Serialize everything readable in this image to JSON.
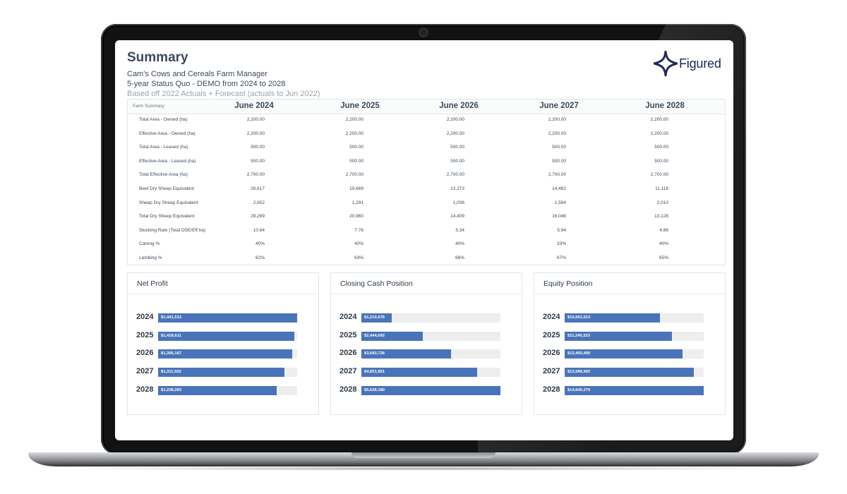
{
  "header": {
    "title": "Summary",
    "farm_manager": "Cam's Cows and Cereals Farm Manager",
    "scenario": "5-year Status Quo - DEMO from 2024 to 2028",
    "basis": "Based off 2022 Actuals + Forecast (actuals to Jun 2022)"
  },
  "logo": {
    "text": "Figured",
    "icon": "figured-star-logo",
    "color": "#1c2a56"
  },
  "table": {
    "corner_label": "Farm Summary",
    "columns": [
      "June 2024",
      "June 2025",
      "June 2026",
      "June 2027",
      "June 2028"
    ],
    "rows": [
      {
        "label": "Total Area - Owned (ha)",
        "values": [
          "2,200.00",
          "2,200.00",
          "2,200.00",
          "2,200.00",
          "2,200.00"
        ]
      },
      {
        "label": "Effective Area - Owned (ha)",
        "values": [
          "2,200.00",
          "2,200.00",
          "2,200.00",
          "2,200.00",
          "2,200.00"
        ]
      },
      {
        "label": "Total Area - Leased (ha)",
        "values": [
          "500.00",
          "500.00",
          "500.00",
          "500.00",
          "500.00"
        ]
      },
      {
        "label": "Effective Area - Leased (ha)",
        "values": [
          "500.00",
          "500.00",
          "500.00",
          "500.00",
          "500.00"
        ]
      },
      {
        "label": "Total Effective Area (ha)",
        "values": [
          "2,700.00",
          "2,700.00",
          "2,700.00",
          "2,700.00",
          "2,700.00"
        ]
      },
      {
        "label": "Beef Dry Sheep Equivalent",
        "values": [
          "26,617",
          "19,669",
          "13,373",
          "14,482",
          "11,118"
        ]
      },
      {
        "label": "Sheep Dry Sheep Equivalent",
        "values": [
          "2,652",
          "1,291",
          "1,036",
          "1,564",
          "2,010"
        ]
      },
      {
        "label": "Total Dry Sheep Equivalent",
        "values": [
          "29,269",
          "20,960",
          "14,409",
          "16,046",
          "13,128"
        ]
      },
      {
        "label": "Stocking Rate (Total DSE/Eff.ha)",
        "values": [
          "10.84",
          "7.76",
          "5.34",
          "5.94",
          "4.86"
        ]
      },
      {
        "label": "Calving %",
        "values": [
          "40%",
          "40%",
          "40%",
          "33%",
          "40%"
        ]
      },
      {
        "label": "Lambing %",
        "values": [
          "62%",
          "63%",
          "66%",
          "67%",
          "65%"
        ]
      }
    ]
  },
  "colors": {
    "bar": "#4a74b9",
    "track": "#eeeeef",
    "heading": "#3b4a5c"
  },
  "cards": [
    {
      "title": "Net Profit",
      "bars": [
        {
          "year": "2024",
          "label": "$1,441,513",
          "value": 1441513,
          "fraction": 1.0
        },
        {
          "year": "2025",
          "label": "$1,418,611",
          "value": 1418611,
          "fraction": 0.98
        },
        {
          "year": "2026",
          "label": "$1,395,167",
          "value": 1395167,
          "fraction": 0.965
        },
        {
          "year": "2027",
          "label": "$1,311,502",
          "value": 1311502,
          "fraction": 0.91
        },
        {
          "year": "2028",
          "label": "$1,238,283",
          "value": 1238283,
          "fraction": 0.855
        }
      ]
    },
    {
      "title": "Closing Cash Position",
      "bars": [
        {
          "year": "2024",
          "label": "$1,210,676",
          "value": 1210676,
          "fraction": 0.22
        },
        {
          "year": "2025",
          "label": "$2,444,692",
          "value": 2444692,
          "fraction": 0.44
        },
        {
          "year": "2026",
          "label": "$3,593,726",
          "value": 3593726,
          "fraction": 0.645
        },
        {
          "year": "2027",
          "label": "$4,651,851",
          "value": 4651851,
          "fraction": 0.835
        },
        {
          "year": "2028",
          "label": "$5,628,180",
          "value": 5628180,
          "fraction": 1.0
        }
      ]
    },
    {
      "title": "Equity Position",
      "bars": [
        {
          "year": "2024",
          "label": "$10,001,513",
          "value": 10001513,
          "fraction": 0.685
        },
        {
          "year": "2025",
          "label": "$11,240,323",
          "value": 11240323,
          "fraction": 0.77
        },
        {
          "year": "2026",
          "label": "$12,455,490",
          "value": 12455490,
          "fraction": 0.85
        },
        {
          "year": "2027",
          "label": "$13,586,992",
          "value": 13586992,
          "fraction": 0.93
        },
        {
          "year": "2028",
          "label": "$14,645,275",
          "value": 14645275,
          "fraction": 1.0
        }
      ]
    }
  ]
}
